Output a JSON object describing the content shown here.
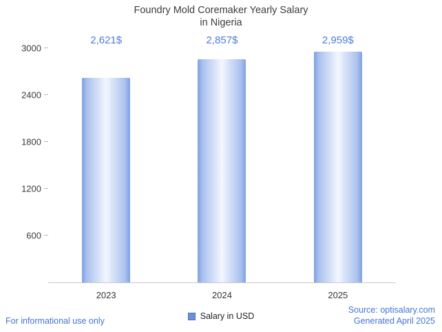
{
  "title": {
    "line1": "Foundry Mold Coremaker Yearly Salary",
    "line2": "in Nigeria"
  },
  "chart_data": {
    "type": "bar",
    "title": "Foundry Mold Coremaker Yearly Salary in Nigeria",
    "categories": [
      "2023",
      "2024",
      "2025"
    ],
    "values": [
      2621,
      2857,
      2959
    ],
    "value_labels": [
      "2,621$",
      "2,857$",
      "2,959$"
    ],
    "xlabel": "",
    "ylabel": "",
    "ylim": [
      0,
      3000
    ],
    "yticks": [
      600,
      1200,
      1800,
      2400,
      3000
    ],
    "grid": false,
    "legend_position": "bottom-center",
    "legend": [
      {
        "label": "Salary in USD",
        "color": "#6b92d8"
      }
    ],
    "bar_edge_color": "#7fa0e4",
    "bar_center_color": "#f3f7fe",
    "value_label_color": "#4a7cd6"
  },
  "footer": {
    "disclaimer": "For informational use only",
    "source": "Source: optisalary.com",
    "generated": "Generated April 2025"
  }
}
